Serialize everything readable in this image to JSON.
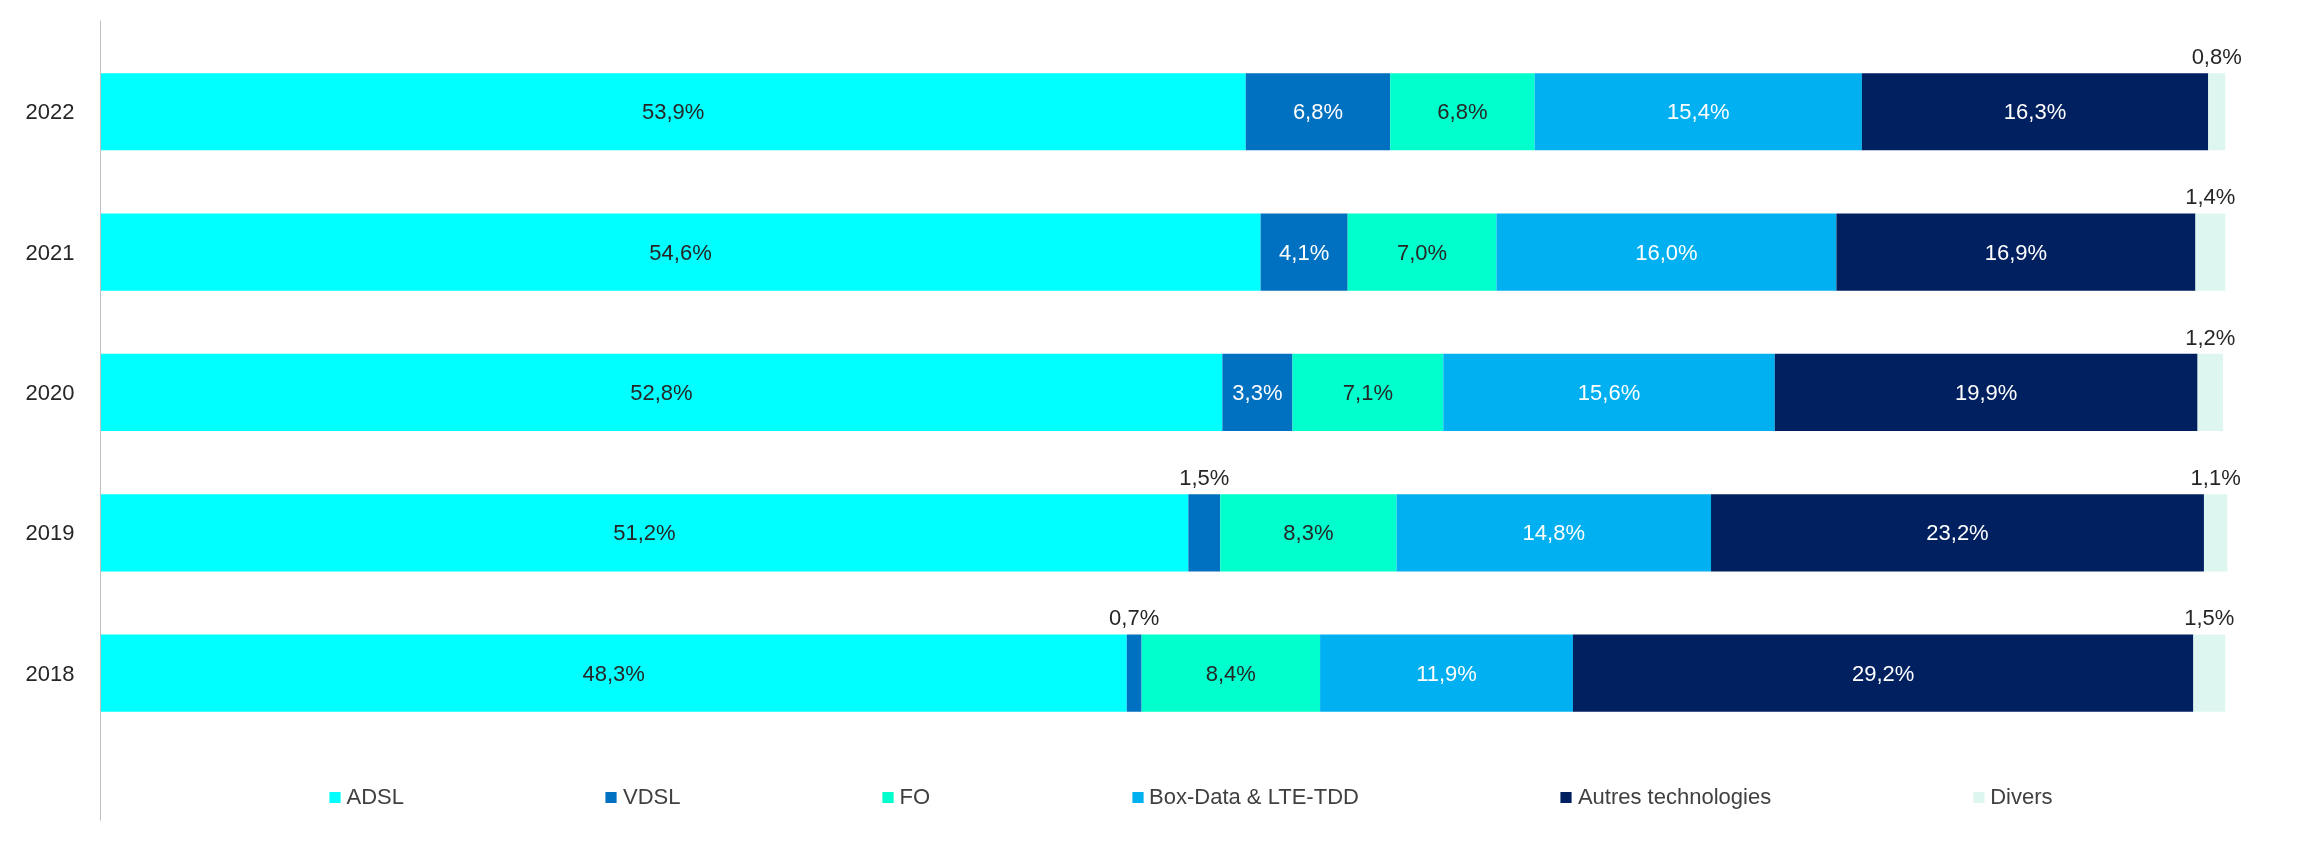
{
  "chart_data": {
    "type": "bar",
    "orientation": "horizontal",
    "stacked": true,
    "legend": "bottom",
    "grid": false,
    "categories": [
      "2022",
      "2021",
      "2020",
      "2019",
      "2018"
    ],
    "series": [
      {
        "name": "ADSL",
        "color": "#00ffff",
        "values": [
          53.9,
          54.6,
          52.8,
          51.2,
          48.3
        ],
        "value_labels": [
          "53,9%",
          "54,6%",
          "52,8%",
          "51,2%",
          "48,3%"
        ]
      },
      {
        "name": "VDSL",
        "color": "#0070c0",
        "values": [
          6.8,
          4.1,
          3.3,
          1.5,
          0.7
        ],
        "value_labels": [
          "6,8%",
          "4,1%",
          "3,3%",
          "1,5%",
          "0,7%"
        ]
      },
      {
        "name": "FO",
        "color": "#00ffcc",
        "values": [
          6.8,
          7.0,
          7.1,
          8.3,
          8.4
        ],
        "value_labels": [
          "6,8%",
          "7,0%",
          "7,1%",
          "8,3%",
          "8,4%"
        ]
      },
      {
        "name": "Box-Data & LTE-TDD",
        "color": "#00b0f0",
        "values": [
          15.4,
          16.0,
          15.6,
          14.8,
          11.9
        ],
        "value_labels": [
          "15,4%",
          "16,0%",
          "15,6%",
          "14,8%",
          "11,9%"
        ]
      },
      {
        "name": "Autres technologies",
        "color": "#002060",
        "values": [
          16.3,
          16.9,
          19.9,
          23.2,
          29.2
        ],
        "value_labels": [
          "16,3%",
          "16,9%",
          "19,9%",
          "23,2%",
          "29,2%"
        ]
      },
      {
        "name": "Divers",
        "color": "#ddf7f0",
        "values": [
          0.8,
          1.4,
          1.2,
          1.1,
          1.5
        ],
        "value_labels": [
          "0,8%",
          "1,4%",
          "1,2%",
          "1,1%",
          "1,5%"
        ]
      }
    ]
  }
}
